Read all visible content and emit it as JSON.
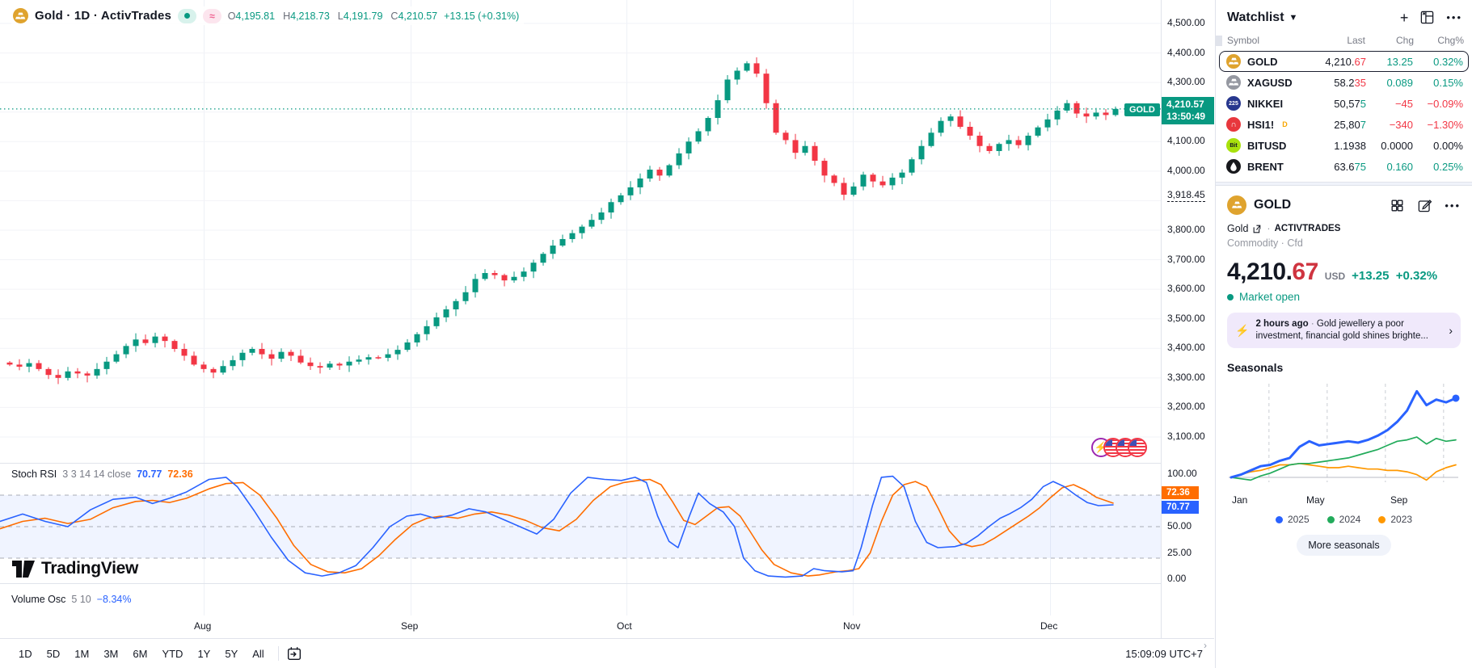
{
  "chart_header": {
    "symbol_title": "Gold · 1D · ActivTrades",
    "ohlc": [
      {
        "label": "O",
        "value": "4,195.81"
      },
      {
        "label": "H",
        "value": "4,218.73"
      },
      {
        "label": "L",
        "value": "4,191.79"
      },
      {
        "label": "C",
        "value": "4,210.57"
      }
    ],
    "change": "+13.15 (+0.31%)"
  },
  "price_label": {
    "symbol": "GOLD",
    "price": "4,210.57",
    "time": "13:50:49"
  },
  "price_axis": {
    "main_levels": [
      4500,
      4400,
      4300,
      4100,
      4000,
      3800,
      3700,
      3600,
      3500,
      3400,
      3300,
      3200,
      3100
    ],
    "special_level": "3,918.45",
    "stoch_levels": [
      100,
      50,
      25,
      0
    ]
  },
  "stoch_header": {
    "title": "Stoch RSI",
    "params": "3 3 14 14 close",
    "k_value": "70.77",
    "d_value": "72.36"
  },
  "volume_osc": {
    "title": "Volume Osc",
    "params": "5 10",
    "value": "−8.34%"
  },
  "time_axis": {
    "months": [
      "Aug",
      "Sep",
      "Oct",
      "Nov",
      "Dec"
    ]
  },
  "watermark": "TradingView",
  "toolbar": {
    "ranges": [
      "1D",
      "5D",
      "1M",
      "3M",
      "6M",
      "YTD",
      "1Y",
      "5Y",
      "All"
    ],
    "clock": "15:09:09 UTC+7"
  },
  "watchlist": {
    "title": "Watchlist",
    "columns": [
      "Symbol",
      "Last",
      "Chg",
      "Chg%"
    ],
    "rows": [
      {
        "symbol": "GOLD",
        "flag": "",
        "icon": "gold-bars",
        "icon_bg": "#DFA32E",
        "icon_text": "",
        "last_main": "4,210.",
        "last_tail": "67",
        "tail_dir": "down",
        "chg": "13.25",
        "chg_dir": "up",
        "chg_pct": "0.32%",
        "selected": true
      },
      {
        "symbol": "XAGUSD",
        "flag": "",
        "icon": "silver-bars",
        "icon_bg": "#9598A1",
        "icon_text": "",
        "last_main": "58.2",
        "last_tail": "35",
        "tail_dir": "down",
        "chg": "0.089",
        "chg_dir": "up",
        "chg_pct": "0.15%",
        "selected": false
      },
      {
        "symbol": "NIKKEI",
        "flag": "",
        "icon": "text",
        "icon_bg": "#27378E",
        "icon_text": "225",
        "last_main": "50,57",
        "last_tail": "5",
        "tail_dir": "up",
        "chg": "−45",
        "chg_dir": "down",
        "chg_pct": "−0.09%",
        "selected": false
      },
      {
        "symbol": "HSI1!",
        "flag": "D",
        "icon": "text",
        "icon_bg": "#E8373D",
        "icon_text": "∩",
        "last_main": "25,80",
        "last_tail": "7",
        "tail_dir": "up",
        "chg": "−340",
        "chg_dir": "down",
        "chg_pct": "−1.30%",
        "selected": false
      },
      {
        "symbol": "BITUSD",
        "flag": "",
        "icon": "text-dark",
        "icon_bg": "#A8E10C",
        "icon_text": "Bit",
        "last_main": "1.1938",
        "last_tail": "",
        "tail_dir": "flat",
        "chg": "0.0000",
        "chg_dir": "flat",
        "chg_pct": "0.00%",
        "selected": false
      },
      {
        "symbol": "BRENT",
        "flag": "",
        "icon": "oil-drop",
        "icon_bg": "#17181C",
        "icon_text": "",
        "last_main": "63.6",
        "last_tail": "75",
        "tail_dir": "up",
        "chg": "0.160",
        "chg_dir": "up",
        "chg_pct": "0.25%",
        "selected": false
      }
    ]
  },
  "symbol_panel": {
    "name": "GOLD",
    "desc": "Gold",
    "exchange": "ACTIVTRADES",
    "type_line": "Commodity · Cfd",
    "price_main": "4,210.",
    "price_tail": "67",
    "currency": "USD",
    "change": "+13.25",
    "change_pct": "+0.32%",
    "market_status": "Market open",
    "news": {
      "time": "2 hours ago",
      "separator": "·",
      "headline": "Gold jewellery a poor investment, financial gold shines brighte..."
    },
    "seasonals_title": "Seasonals",
    "seasonal_months": [
      "Jan",
      "May",
      "Sep"
    ],
    "legend": [
      {
        "label": "2025",
        "color": "#2962FF"
      },
      {
        "label": "2024",
        "color": "#22AB5B"
      },
      {
        "label": "2023",
        "color": "#FF9800"
      }
    ],
    "more_button": "More seasonals"
  },
  "colors": {
    "up": "#089981",
    "down": "#F23645",
    "neutral": "#131722",
    "k_blue": "#2962FF",
    "d_orange": "#FF6D00",
    "news_purple": "#7E3BF2"
  },
  "chart_data": [
    {
      "type": "candlestick",
      "title": "Gold · 1D · ActivTrades",
      "timeframe": "1D",
      "ylim": [
        3050,
        4520
      ],
      "current_price_line": 4210.57,
      "marked_level": 3918.45,
      "first_open": 3352,
      "closes": [
        3345,
        3338,
        3350,
        3330,
        3310,
        3300,
        3322,
        3315,
        3308,
        3330,
        3355,
        3380,
        3408,
        3430,
        3418,
        3440,
        3425,
        3398,
        3375,
        3345,
        3330,
        3318,
        3340,
        3360,
        3385,
        3398,
        3380,
        3365,
        3388,
        3375,
        3352,
        3340,
        3335,
        3348,
        3342,
        3355,
        3362,
        3370,
        3368,
        3380,
        3395,
        3420,
        3448,
        3475,
        3505,
        3532,
        3560,
        3590,
        3635,
        3655,
        3648,
        3630,
        3642,
        3660,
        3690,
        3720,
        3748,
        3770,
        3790,
        3812,
        3835,
        3860,
        3895,
        3918,
        3945,
        3975,
        4005,
        3985,
        4020,
        4060,
        4100,
        4135,
        4180,
        4240,
        4310,
        4340,
        4365,
        4330,
        4230,
        4130,
        4105,
        4062,
        4085,
        4035,
        3985,
        3960,
        3920,
        3948,
        3988,
        3965,
        3952,
        3978,
        3995,
        4040,
        4085,
        4130,
        4170,
        4185,
        4150,
        4120,
        4085,
        4068,
        4092,
        4105,
        4088,
        4120,
        4148,
        4175,
        4205,
        4230,
        4195,
        4185,
        4198,
        4190,
        4210.57
      ]
    },
    {
      "type": "line",
      "title": "Stoch RSI 3 3 14 14 close",
      "ylim": [
        0,
        100
      ],
      "bands": [
        20,
        50,
        80
      ],
      "series": [
        {
          "name": "K",
          "color": "#2962FF",
          "last": 70.77,
          "points": [
            [
              0,
              55
            ],
            [
              0.02,
              62
            ],
            [
              0.04,
              55
            ],
            [
              0.06,
              50
            ],
            [
              0.08,
              66
            ],
            [
              0.1,
              76
            ],
            [
              0.12,
              78
            ],
            [
              0.135,
              72
            ],
            [
              0.15,
              77
            ],
            [
              0.165,
              83
            ],
            [
              0.185,
              95
            ],
            [
              0.2,
              97
            ],
            [
              0.21,
              88
            ],
            [
              0.225,
              65
            ],
            [
              0.24,
              40
            ],
            [
              0.255,
              18
            ],
            [
              0.27,
              6
            ],
            [
              0.285,
              3
            ],
            [
              0.3,
              6
            ],
            [
              0.315,
              13
            ],
            [
              0.33,
              30
            ],
            [
              0.345,
              50
            ],
            [
              0.36,
              60
            ],
            [
              0.372,
              62
            ],
            [
              0.385,
              58
            ],
            [
              0.4,
              61
            ],
            [
              0.415,
              67
            ],
            [
              0.43,
              64
            ],
            [
              0.445,
              57
            ],
            [
              0.46,
              50
            ],
            [
              0.475,
              43
            ],
            [
              0.49,
              57
            ],
            [
              0.505,
              82
            ],
            [
              0.52,
              97
            ],
            [
              0.535,
              95
            ],
            [
              0.55,
              94
            ],
            [
              0.562,
              97
            ],
            [
              0.572,
              92
            ],
            [
              0.582,
              60
            ],
            [
              0.592,
              36
            ],
            [
              0.6,
              30
            ],
            [
              0.61,
              60
            ],
            [
              0.618,
              82
            ],
            [
              0.628,
              72
            ],
            [
              0.64,
              64
            ],
            [
              0.65,
              50
            ],
            [
              0.658,
              20
            ],
            [
              0.668,
              8
            ],
            [
              0.68,
              3
            ],
            [
              0.695,
              2
            ],
            [
              0.71,
              3
            ],
            [
              0.72,
              10
            ],
            [
              0.73,
              8
            ],
            [
              0.745,
              7
            ],
            [
              0.755,
              8
            ],
            [
              0.762,
              30
            ],
            [
              0.772,
              70
            ],
            [
              0.78,
              97
            ],
            [
              0.79,
              98
            ],
            [
              0.8,
              88
            ],
            [
              0.81,
              55
            ],
            [
              0.82,
              35
            ],
            [
              0.83,
              30
            ],
            [
              0.845,
              31
            ],
            [
              0.855,
              34
            ],
            [
              0.865,
              41
            ],
            [
              0.875,
              50
            ],
            [
              0.885,
              58
            ],
            [
              0.893,
              62
            ],
            [
              0.903,
              68
            ],
            [
              0.913,
              76
            ],
            [
              0.923,
              88
            ],
            [
              0.932,
              93
            ],
            [
              0.942,
              88
            ],
            [
              0.952,
              80
            ],
            [
              0.962,
              73
            ],
            [
              0.972,
              70
            ],
            [
              0.985,
              70.77
            ]
          ]
        },
        {
          "name": "D",
          "color": "#FF6D00",
          "last": 72.36,
          "points": [
            [
              0,
              48
            ],
            [
              0.02,
              55
            ],
            [
              0.04,
              58
            ],
            [
              0.06,
              53
            ],
            [
              0.08,
              57
            ],
            [
              0.1,
              68
            ],
            [
              0.12,
              74
            ],
            [
              0.135,
              75
            ],
            [
              0.15,
              73
            ],
            [
              0.165,
              77
            ],
            [
              0.185,
              86
            ],
            [
              0.2,
              91
            ],
            [
              0.215,
              92
            ],
            [
              0.23,
              80
            ],
            [
              0.245,
              58
            ],
            [
              0.26,
              32
            ],
            [
              0.275,
              14
            ],
            [
              0.29,
              7
            ],
            [
              0.305,
              6
            ],
            [
              0.32,
              10
            ],
            [
              0.335,
              22
            ],
            [
              0.35,
              38
            ],
            [
              0.365,
              52
            ],
            [
              0.378,
              58
            ],
            [
              0.39,
              60
            ],
            [
              0.405,
              58
            ],
            [
              0.42,
              62
            ],
            [
              0.435,
              64
            ],
            [
              0.45,
              61
            ],
            [
              0.465,
              56
            ],
            [
              0.48,
              49
            ],
            [
              0.495,
              46
            ],
            [
              0.51,
              57
            ],
            [
              0.525,
              75
            ],
            [
              0.54,
              88
            ],
            [
              0.552,
              92
            ],
            [
              0.565,
              94
            ],
            [
              0.575,
              95
            ],
            [
              0.585,
              90
            ],
            [
              0.595,
              74
            ],
            [
              0.605,
              56
            ],
            [
              0.615,
              52
            ],
            [
              0.625,
              60
            ],
            [
              0.635,
              68
            ],
            [
              0.645,
              69
            ],
            [
              0.655,
              60
            ],
            [
              0.664,
              45
            ],
            [
              0.674,
              28
            ],
            [
              0.685,
              14
            ],
            [
              0.7,
              6
            ],
            [
              0.715,
              3
            ],
            [
              0.725,
              4
            ],
            [
              0.74,
              7
            ],
            [
              0.75,
              8
            ],
            [
              0.76,
              10
            ],
            [
              0.77,
              25
            ],
            [
              0.78,
              55
            ],
            [
              0.79,
              80
            ],
            [
              0.8,
              90
            ],
            [
              0.81,
              93
            ],
            [
              0.82,
              88
            ],
            [
              0.83,
              68
            ],
            [
              0.84,
              46
            ],
            [
              0.85,
              34
            ],
            [
              0.86,
              31
            ],
            [
              0.87,
              33
            ],
            [
              0.88,
              39
            ],
            [
              0.89,
              46
            ],
            [
              0.9,
              53
            ],
            [
              0.91,
              60
            ],
            [
              0.92,
              68
            ],
            [
              0.93,
              78
            ],
            [
              0.94,
              87
            ],
            [
              0.95,
              90
            ],
            [
              0.96,
              85
            ],
            [
              0.97,
              78
            ],
            [
              0.985,
              72.36
            ]
          ]
        }
      ]
    },
    {
      "type": "line",
      "title": "Seasonals",
      "x_ticks": [
        "Jan",
        "May",
        "Sep"
      ],
      "unit": "percent change, semi-monthly samples Jan–Dec",
      "series": [
        {
          "name": "2025",
          "color": "#2962FF",
          "values": [
            0,
            2,
            5,
            8,
            9,
            12,
            14,
            22,
            26,
            23,
            24,
            25,
            26,
            25,
            27,
            30,
            34,
            40,
            48,
            62,
            52,
            56,
            54,
            57
          ]
        },
        {
          "name": "2024",
          "color": "#22AB5B",
          "values": [
            0,
            -1,
            -2,
            1,
            3,
            6,
            9,
            10,
            10,
            11,
            12,
            13,
            14,
            16,
            18,
            20,
            23,
            26,
            27,
            29,
            24,
            28,
            26,
            27
          ]
        },
        {
          "name": "2023",
          "color": "#FF9800",
          "values": [
            0,
            2,
            4,
            5,
            7,
            9,
            9,
            10,
            9,
            8,
            7,
            7,
            8,
            7,
            6,
            6,
            5,
            5,
            4,
            2,
            -2,
            4,
            7,
            9
          ]
        }
      ]
    }
  ]
}
